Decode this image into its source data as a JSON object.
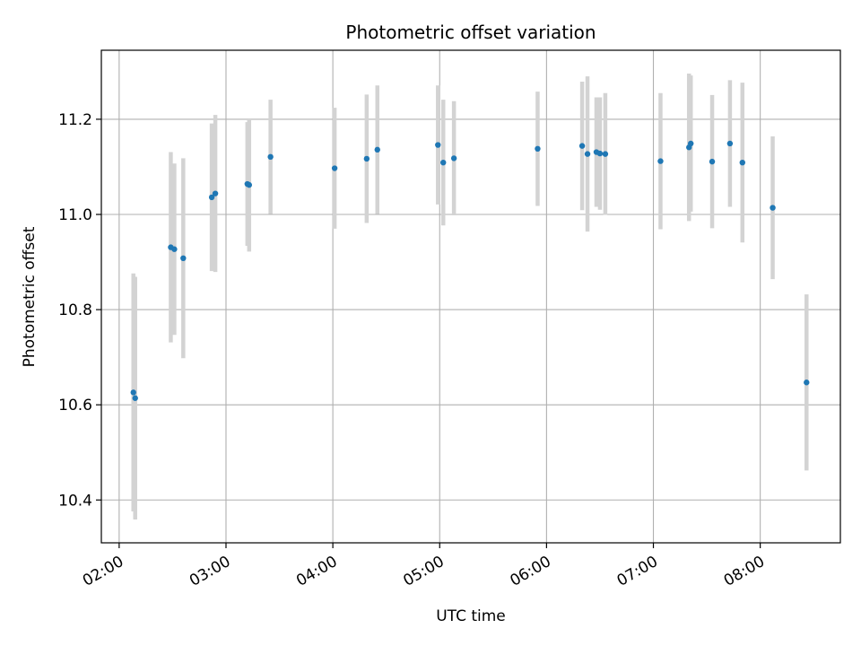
{
  "chart_data": {
    "type": "scatter",
    "title": "Photometric offset variation",
    "xlabel": "UTC time",
    "ylabel": "Photometric offset",
    "x_tick_labels": [
      "02:00",
      "03:00",
      "04:00",
      "05:00",
      "06:00",
      "07:00",
      "08:00"
    ],
    "y_tick_labels": [
      "10.4",
      "10.6",
      "10.8",
      "11.0",
      "11.2"
    ],
    "y_ticks": [
      10.4,
      10.6,
      10.8,
      11.0,
      11.2
    ],
    "xlim": [
      "01:50",
      "08:45"
    ],
    "ylim": [
      10.31,
      11.345
    ],
    "grid": true,
    "point_color": "#1f77b4",
    "errorbar_color": "#d3d3d3",
    "series": [
      {
        "points": [
          {
            "x": "02:08",
            "y": 10.626,
            "yerr": 0.25
          },
          {
            "x": "02:09",
            "y": 10.614,
            "yerr": 0.255
          },
          {
            "x": "02:29",
            "y": 10.931,
            "yerr": 0.2
          },
          {
            "x": "02:31",
            "y": 10.927,
            "yerr": 0.18
          },
          {
            "x": "02:36",
            "y": 10.908,
            "yerr": 0.21
          },
          {
            "x": "02:52",
            "y": 11.036,
            "yerr": 0.155
          },
          {
            "x": "02:54",
            "y": 11.044,
            "yerr": 0.165
          },
          {
            "x": "03:12",
            "y": 11.064,
            "yerr": 0.13
          },
          {
            "x": "03:13",
            "y": 11.062,
            "yerr": 0.14
          },
          {
            "x": "03:25",
            "y": 11.121,
            "yerr": 0.12
          },
          {
            "x": "04:01",
            "y": 11.097,
            "yerr": 0.127
          },
          {
            "x": "04:19",
            "y": 11.117,
            "yerr": 0.135
          },
          {
            "x": "04:25",
            "y": 11.136,
            "yerr": 0.135
          },
          {
            "x": "04:59",
            "y": 11.146,
            "yerr": 0.125
          },
          {
            "x": "05:02",
            "y": 11.109,
            "yerr": 0.132
          },
          {
            "x": "05:08",
            "y": 11.118,
            "yerr": 0.12
          },
          {
            "x": "05:55",
            "y": 11.138,
            "yerr": 0.12
          },
          {
            "x": "06:20",
            "y": 11.144,
            "yerr": 0.135
          },
          {
            "x": "06:23",
            "y": 11.127,
            "yerr": 0.163
          },
          {
            "x": "06:28",
            "y": 11.131,
            "yerr": 0.115
          },
          {
            "x": "06:30",
            "y": 11.128,
            "yerr": 0.118
          },
          {
            "x": "06:33",
            "y": 11.127,
            "yerr": 0.128
          },
          {
            "x": "07:04",
            "y": 11.112,
            "yerr": 0.143
          },
          {
            "x": "07:20",
            "y": 11.141,
            "yerr": 0.155
          },
          {
            "x": "07:21",
            "y": 11.149,
            "yerr": 0.143
          },
          {
            "x": "07:33",
            "y": 11.111,
            "yerr": 0.14
          },
          {
            "x": "07:43",
            "y": 11.149,
            "yerr": 0.133
          },
          {
            "x": "07:50",
            "y": 11.109,
            "yerr": 0.168
          },
          {
            "x": "08:07",
            "y": 11.014,
            "yerr": 0.15
          },
          {
            "x": "08:26",
            "y": 10.647,
            "yerr": 0.185
          }
        ]
      }
    ]
  }
}
